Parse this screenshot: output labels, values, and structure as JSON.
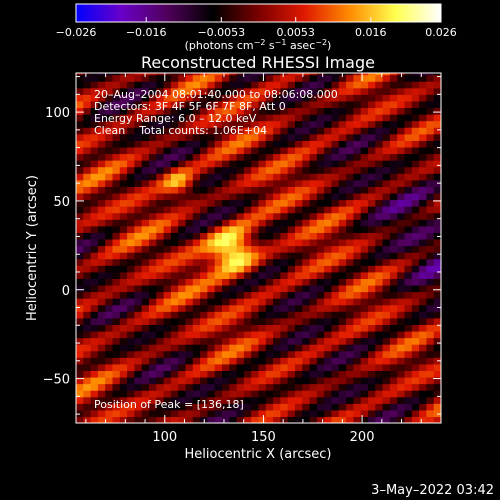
{
  "chart_data": {
    "type": "heatmap",
    "title": "Reconstructed RHESSI Image",
    "xlabel": "Heliocentric X (arcsec)",
    "ylabel": "Heliocentric Y (arcsec)",
    "xlim": [
      55,
      240
    ],
    "ylim": [
      -75,
      122
    ],
    "x_ticks": [
      100,
      150,
      200
    ],
    "y_ticks": [
      -50,
      0,
      50,
      100
    ],
    "x_tick_labels": [
      "100",
      "150",
      "200"
    ],
    "y_tick_labels": [
      "−50",
      "0",
      "50",
      "100"
    ],
    "grid": false,
    "colorbar": {
      "range": [
        -0.026,
        0.026
      ],
      "ticks": [
        -0.026,
        -0.016,
        -0.0053,
        0.0053,
        0.016,
        0.026
      ],
      "tick_labels": [
        "−0.026",
        "−0.016",
        "−0.0053",
        "0.0053",
        "0.016",
        "0.026"
      ],
      "units_prefix": "(photons cm",
      "units_exp1": "−2",
      "units_mid": " s",
      "units_exp2": "−1",
      "units_mid2": " asec",
      "units_exp3": "−2",
      "units_suffix": ")",
      "colors": [
        "#0000ff",
        "#6a00c8",
        "#50005a",
        "#000000",
        "#7a0000",
        "#e01800",
        "#ff8c00",
        "#ffff50",
        "#ffffff"
      ]
    },
    "annotations": [
      "20–Aug–2004 08:01:40.000 to 08:06:08.000",
      "Detectors: 3F 4F 5F 6F 7F 8F, Att 0",
      "Energy Range: 6.0 – 12.0 keV",
      "Clean    Total counts: 1.06E+04",
      "Position of Peak = [136,18]"
    ],
    "peak_position": [
      136,
      18
    ],
    "source_blobs": [
      {
        "x": 135,
        "y": 22,
        "value": 0.026
      },
      {
        "x": 107,
        "y": 60,
        "value": 0.014
      }
    ],
    "stripe_angle_deg": 30,
    "stripe_period_arcsec": 20
  },
  "footer": {
    "date": "3–May–2022 03:42"
  }
}
